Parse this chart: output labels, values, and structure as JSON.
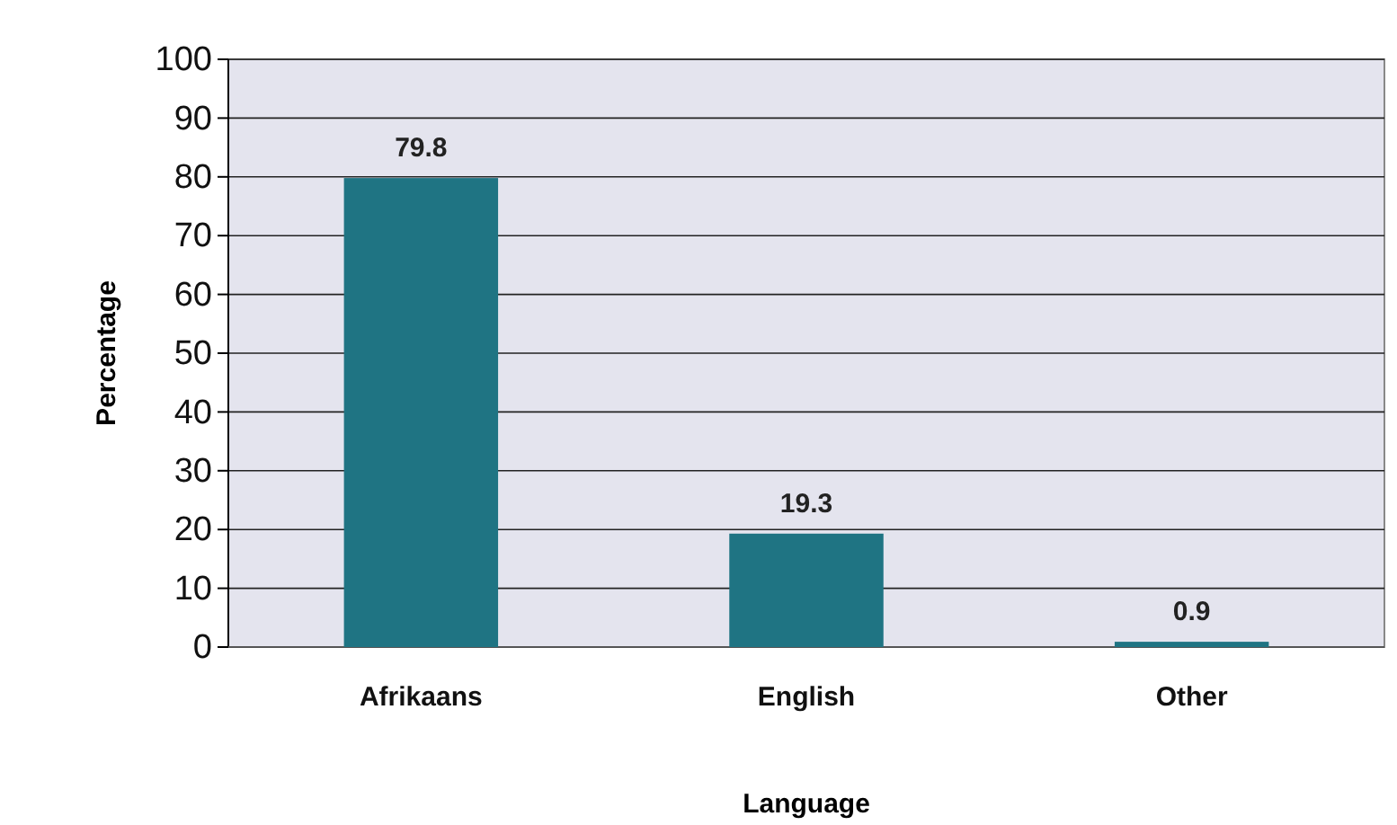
{
  "chart_data": {
    "type": "bar",
    "xlabel": "Language",
    "ylabel": "Percentage",
    "categories": [
      "Afrikaans",
      "English",
      "Other"
    ],
    "values": [
      79.8,
      19.3,
      0.9
    ],
    "color": "#1f7483",
    "ylim": [
      0,
      100
    ],
    "yticks": [
      0,
      10,
      20,
      30,
      40,
      50,
      60,
      70,
      80,
      90,
      100
    ],
    "grid": "y",
    "data_labels": true
  }
}
